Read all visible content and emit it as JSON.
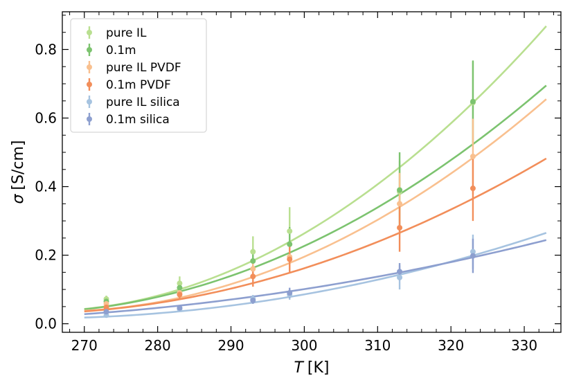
{
  "chart_data": {
    "type": "line",
    "xlabel": {
      "symbol": "T",
      "unit": "[K]"
    },
    "ylabel": {
      "symbol": "σ",
      "unit": "[S/cm]"
    },
    "xlim": [
      267,
      335
    ],
    "ylim": [
      -0.025,
      0.91
    ],
    "xticks": [
      270,
      280,
      290,
      300,
      310,
      320,
      330
    ],
    "yticks": [
      0.0,
      0.2,
      0.4,
      0.6,
      0.8
    ],
    "x_minor_step": 2,
    "y_minor_step": 0.05,
    "grid": false,
    "legend_position": "top-left",
    "fit_x_range": [
      270,
      333
    ],
    "series": [
      {
        "name": "pure IL",
        "color": "#b9df90",
        "points": [
          {
            "x": 273,
            "y": 0.072,
            "err": 0.01
          },
          {
            "x": 283,
            "y": 0.118,
            "err": 0.02
          },
          {
            "x": 293,
            "y": 0.21,
            "err": 0.045
          },
          {
            "x": 298,
            "y": 0.27,
            "err": 0.07
          },
          {
            "x": 313,
            "y": 0.385,
            "err": 0.09
          },
          {
            "x": 323,
            "y": 0.645,
            "err": 0.12
          }
        ],
        "fit": {
          "at_x": [
            270,
            295,
            333
          ],
          "y": [
            0.043,
            0.205,
            0.868
          ]
        }
      },
      {
        "name": "0.1m",
        "color": "#7cc36f",
        "points": [
          {
            "x": 273,
            "y": 0.065,
            "err": 0.008
          },
          {
            "x": 283,
            "y": 0.105,
            "err": 0.015
          },
          {
            "x": 293,
            "y": 0.183,
            "err": 0.035
          },
          {
            "x": 298,
            "y": 0.232,
            "err": 0.05
          },
          {
            "x": 313,
            "y": 0.39,
            "err": 0.11
          },
          {
            "x": 323,
            "y": 0.648,
            "err": 0.12
          }
        ],
        "fit": {
          "at_x": [
            270,
            295,
            333
          ],
          "y": [
            0.042,
            0.18,
            0.695
          ]
        }
      },
      {
        "name": "pure IL PVDF",
        "color": "#f9c08f",
        "points": [
          {
            "x": 273,
            "y": 0.058,
            "err": 0.008
          },
          {
            "x": 283,
            "y": 0.09,
            "err": 0.012
          },
          {
            "x": 293,
            "y": 0.16,
            "err": 0.03
          },
          {
            "x": 298,
            "y": 0.195,
            "err": 0.04
          },
          {
            "x": 313,
            "y": 0.35,
            "err": 0.09
          },
          {
            "x": 323,
            "y": 0.488,
            "err": 0.11
          }
        ],
        "fit": {
          "at_x": [
            270,
            295,
            333
          ],
          "y": [
            0.038,
            0.152,
            0.655
          ]
        }
      },
      {
        "name": "0.1m PVDF",
        "color": "#f28e5a",
        "points": [
          {
            "x": 273,
            "y": 0.048,
            "err": 0.006
          },
          {
            "x": 283,
            "y": 0.085,
            "err": 0.012
          },
          {
            "x": 293,
            "y": 0.138,
            "err": 0.03
          },
          {
            "x": 298,
            "y": 0.188,
            "err": 0.04
          },
          {
            "x": 313,
            "y": 0.28,
            "err": 0.07
          },
          {
            "x": 323,
            "y": 0.395,
            "err": 0.095
          }
        ],
        "fit": {
          "at_x": [
            270,
            295,
            333
          ],
          "y": [
            0.036,
            0.13,
            0.482
          ]
        }
      },
      {
        "name": "pure IL silica",
        "color": "#a6c3e0",
        "points": [
          {
            "x": 273,
            "y": 0.025,
            "err": 0.004
          },
          {
            "x": 283,
            "y": 0.043,
            "err": 0.006
          },
          {
            "x": 293,
            "y": 0.072,
            "err": 0.012
          },
          {
            "x": 298,
            "y": 0.085,
            "err": 0.015
          },
          {
            "x": 313,
            "y": 0.135,
            "err": 0.035
          },
          {
            "x": 323,
            "y": 0.21,
            "err": 0.05
          }
        ],
        "fit": {
          "at_x": [
            270,
            295,
            333
          ],
          "y": [
            0.018,
            0.068,
            0.265
          ]
        }
      },
      {
        "name": "0.1m silica",
        "color": "#8d9fcf",
        "points": [
          {
            "x": 273,
            "y": 0.035,
            "err": 0.005
          },
          {
            "x": 283,
            "y": 0.046,
            "err": 0.006
          },
          {
            "x": 293,
            "y": 0.068,
            "err": 0.01
          },
          {
            "x": 298,
            "y": 0.09,
            "err": 0.015
          },
          {
            "x": 313,
            "y": 0.152,
            "err": 0.025
          },
          {
            "x": 323,
            "y": 0.198,
            "err": 0.05
          }
        ],
        "fit": {
          "at_x": [
            270,
            295,
            333
          ],
          "y": [
            0.028,
            0.085,
            0.244
          ]
        }
      }
    ]
  }
}
